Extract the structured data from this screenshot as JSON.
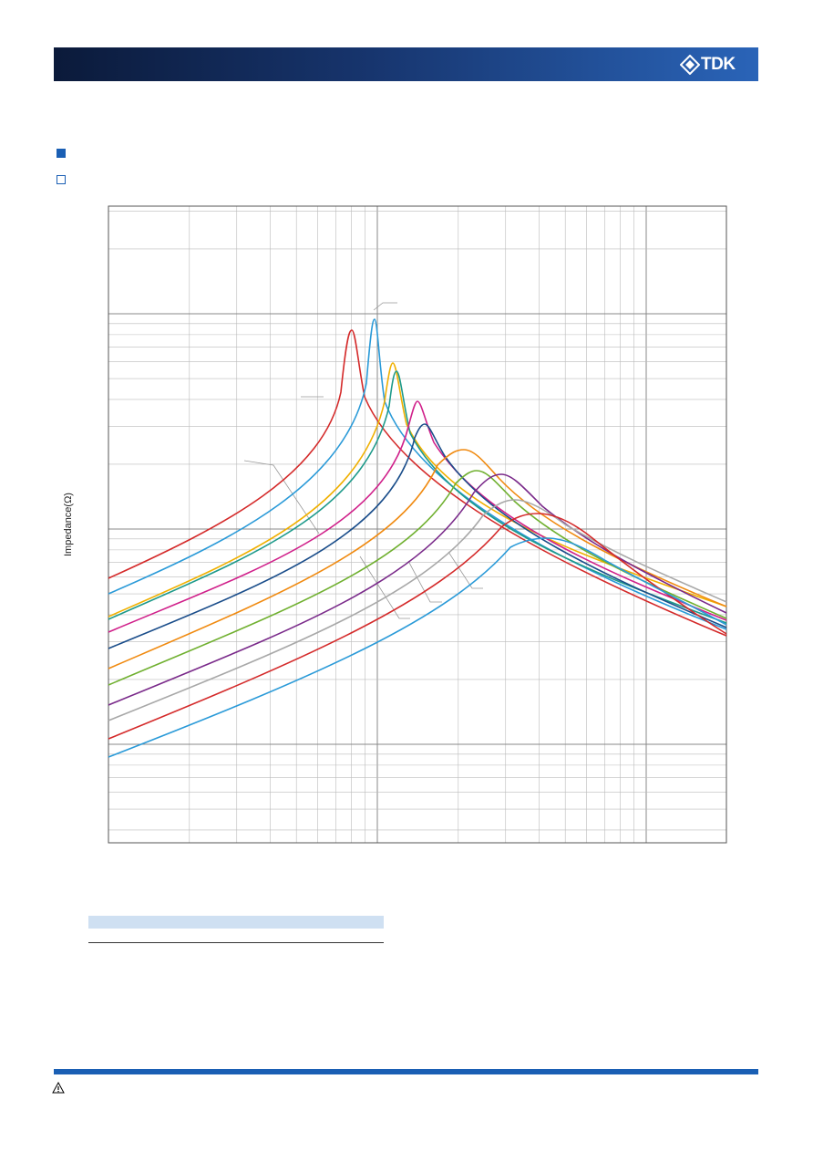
{
  "header": {
    "logo": "TDK"
  },
  "chart": {
    "y_label": "Impedance(Ω)"
  }
}
